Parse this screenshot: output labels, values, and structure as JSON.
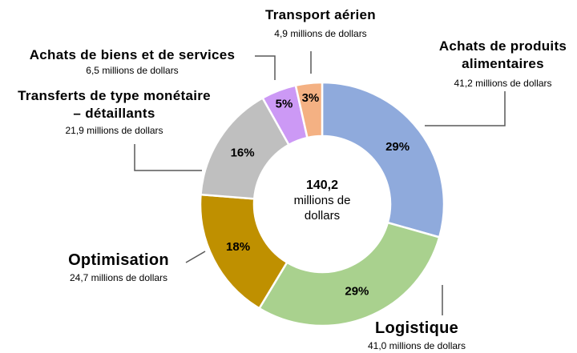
{
  "chart_data": {
    "type": "donut",
    "categories": [
      "Achats de produits alimentaires",
      "Logistique",
      "Optimisation",
      "Transferts de type monétaire – détaillants",
      "Achats de biens et de services",
      "Transport aérien"
    ],
    "values": [
      41.2,
      41.0,
      24.7,
      21.9,
      6.5,
      4.9
    ],
    "value_labels": [
      "41,2 millions de dollars",
      "41,0 millions de dollars",
      "24,7 millions de dollars",
      "21,9 millions de dollars",
      "6,5 millions de dollars",
      "4,9 millions de dollars"
    ],
    "percent_labels": [
      "29%",
      "29%",
      "18%",
      "16%",
      "5%",
      "3%"
    ],
    "colors": [
      "#8faadc",
      "#a9d18e",
      "#bf9000",
      "#bfbfbf",
      "#cc99f5",
      "#f4b183"
    ],
    "center_label": "140,2",
    "center_unit": "millions de dollars"
  }
}
